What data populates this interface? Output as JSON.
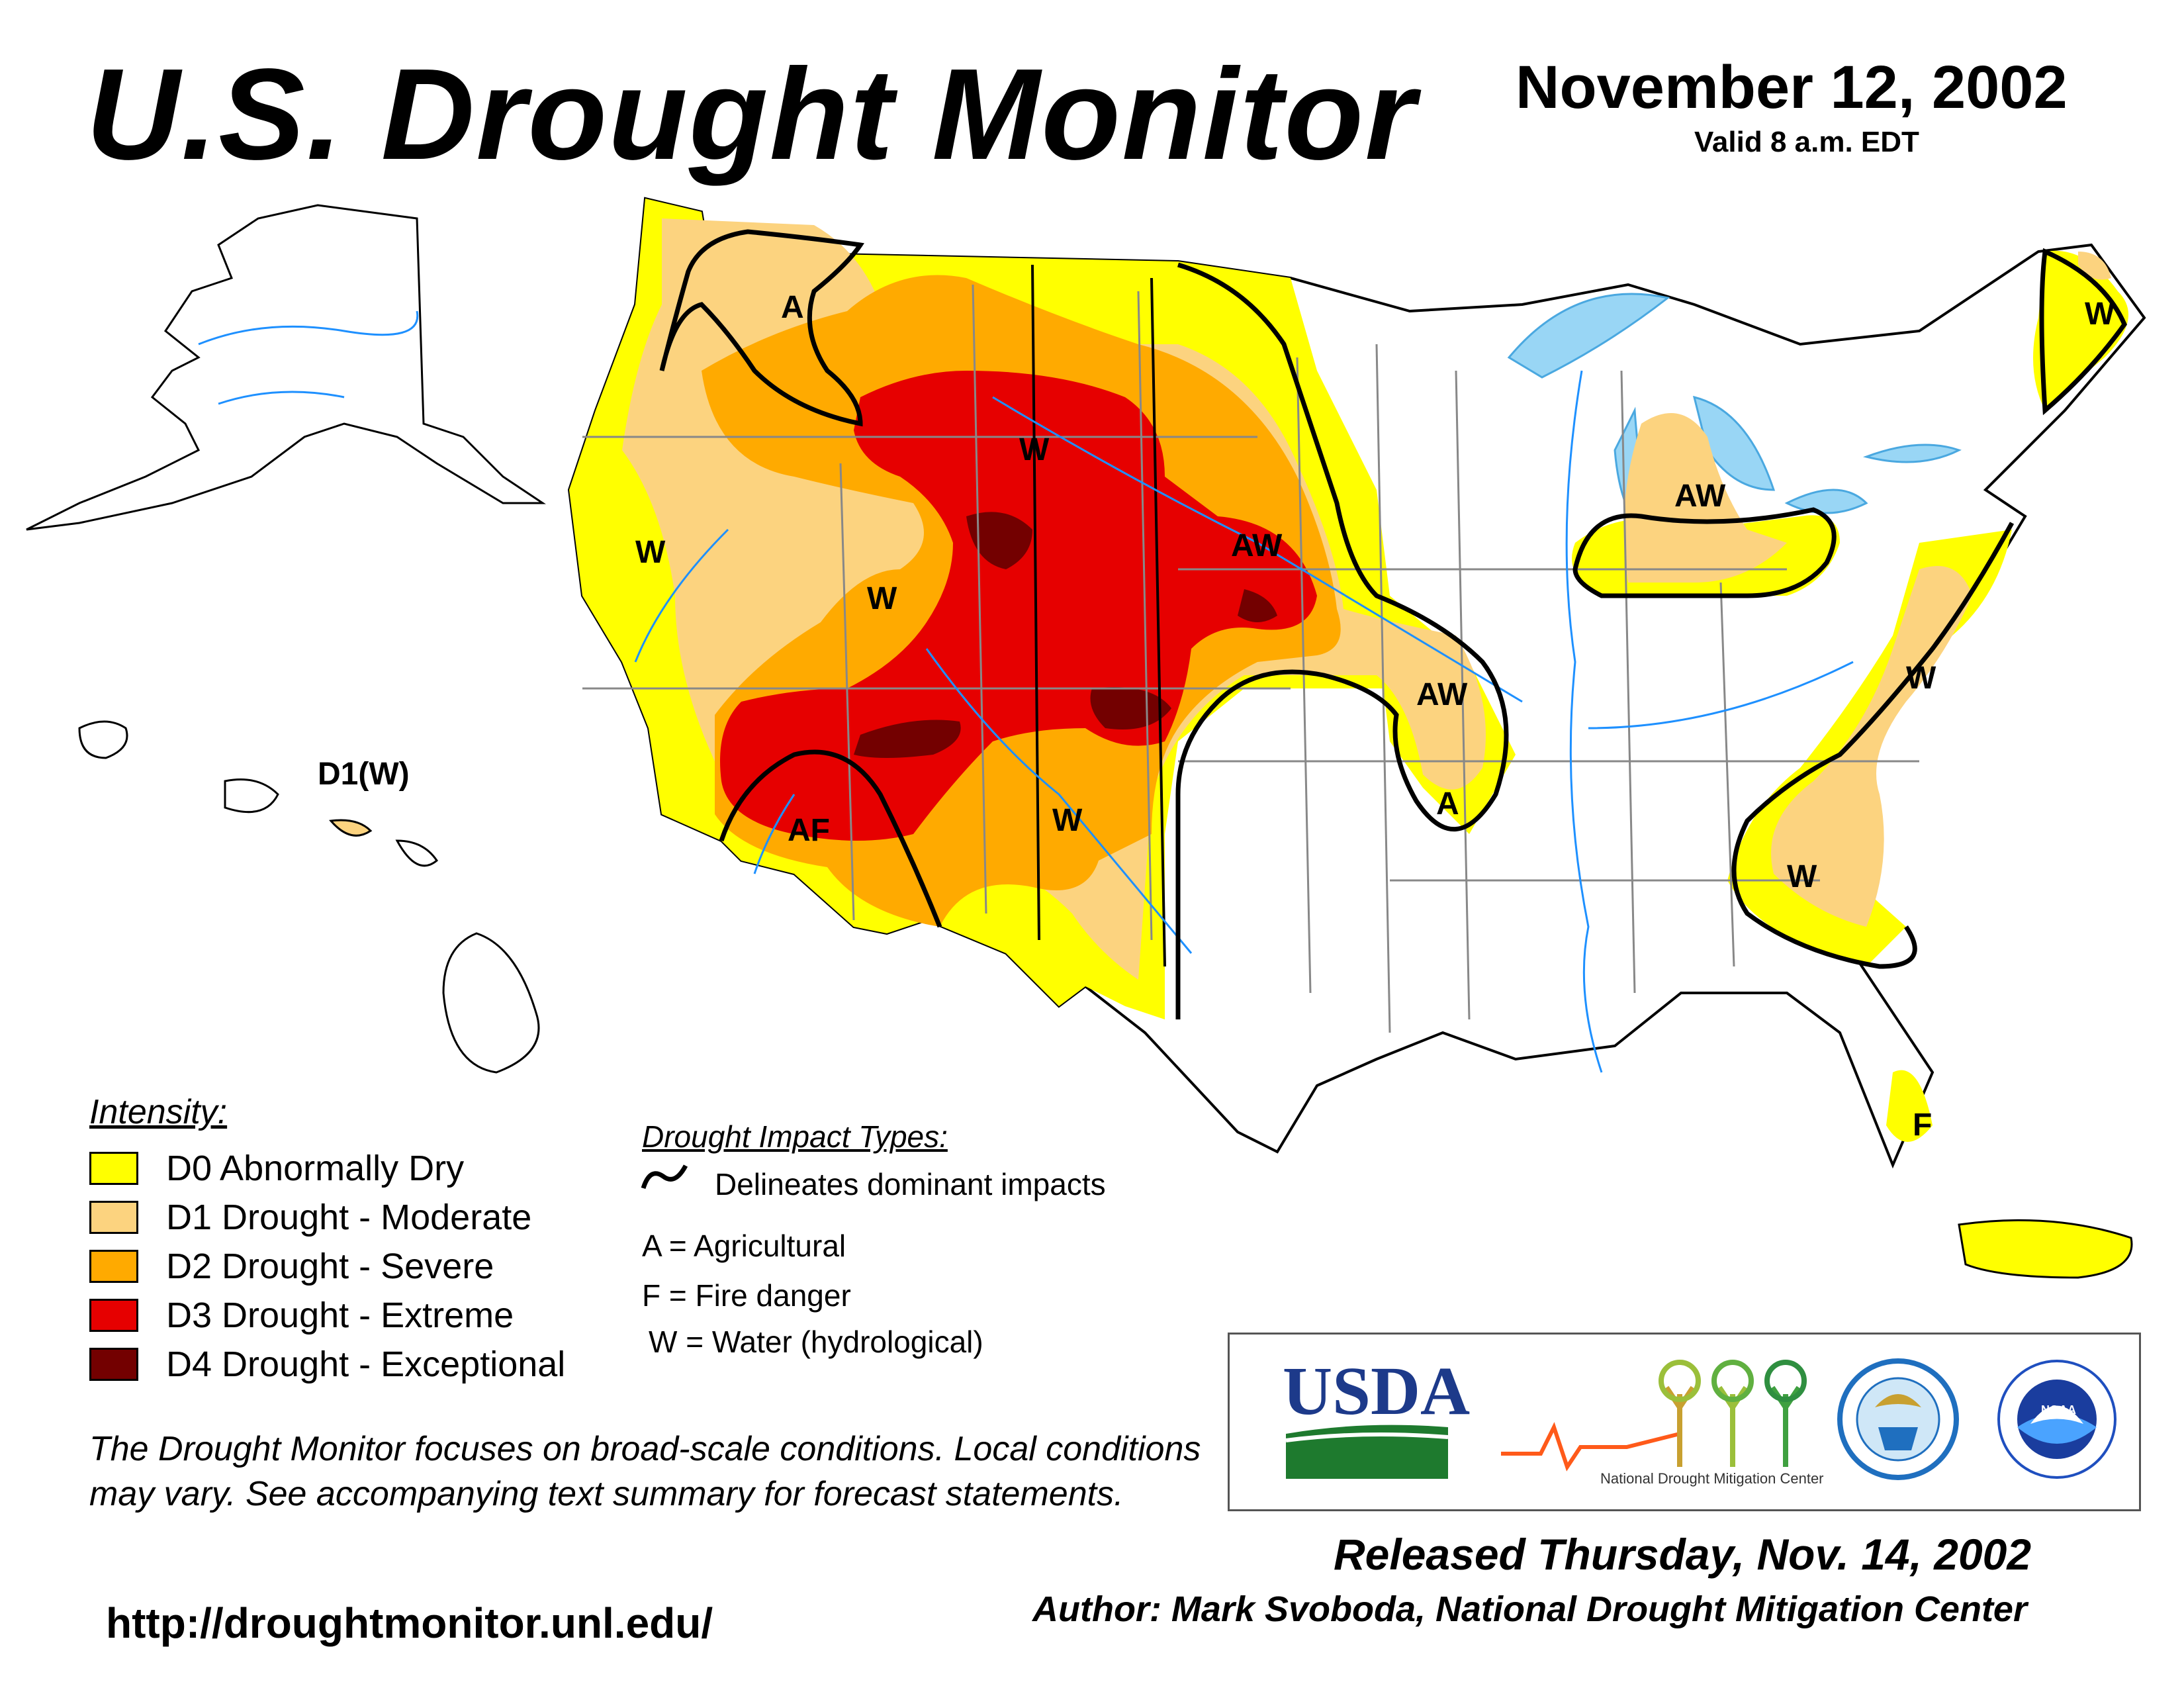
{
  "header": {
    "title": "U.S. Drought Monitor",
    "date": "November 12, 2002",
    "valid": "Valid 8 a.m. EDT"
  },
  "colors": {
    "d0": "#ffff00",
    "d1": "#fcd37f",
    "d2": "#ffaa00",
    "d3": "#e60000",
    "d4": "#730000",
    "water": "#1e90ff",
    "lake": "#99d6f5"
  },
  "legend": {
    "title": "Intensity:",
    "items": [
      {
        "label": "D0 Abnormally Dry",
        "color": "#ffff00"
      },
      {
        "label": "D1 Drought - Moderate",
        "color": "#fcd37f"
      },
      {
        "label": "D2 Drought - Severe",
        "color": "#ffaa00"
      },
      {
        "label": "D3 Drought - Extreme",
        "color": "#e60000"
      },
      {
        "label": "D4 Drought - Exceptional",
        "color": "#730000"
      }
    ]
  },
  "impacts": {
    "title": "Drought Impact Types:",
    "line_label": "Delineates dominant impacts",
    "codes": [
      "A = Agricultural",
      "F = Fire danger",
      "W = Water (hydrological)"
    ]
  },
  "map_labels": [
    "A",
    "W",
    "W",
    "W",
    "AW",
    "AW",
    "AW",
    "A",
    "AF",
    "W",
    "W",
    "W",
    "W",
    "F",
    "D1(W)"
  ],
  "note": "The Drought Monitor focuses on broad-scale conditions. Local conditions may vary. See accompanying text summary for forecast statements.",
  "url": "http://droughtmonitor.unl.edu/",
  "logos": {
    "usda": "USDA",
    "ndmc": "National Drought Mitigation Center",
    "commerce": "DEPARTMENT OF COMMERCE",
    "noaa": "NOAA"
  },
  "footer": {
    "released": "Released Thursday, Nov. 14, 2002",
    "author": "Author: Mark Svoboda, National Drought Mitigation Center"
  }
}
